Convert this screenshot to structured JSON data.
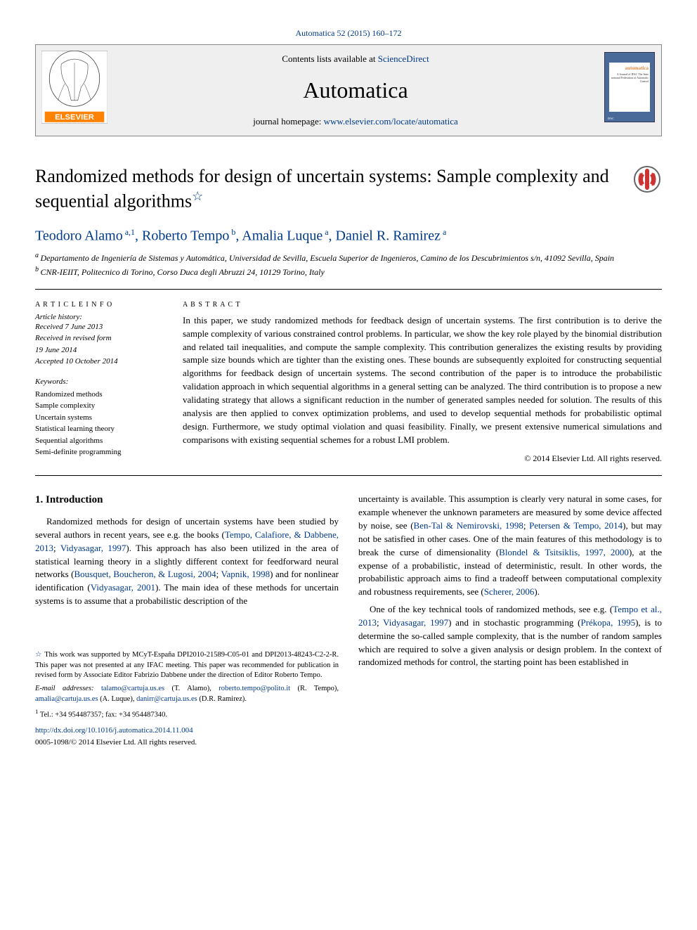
{
  "header": {
    "citation": "Automatica 52 (2015) 160–172",
    "contents_prefix": "Contents lists available at ",
    "contents_link": "ScienceDirect",
    "journal": "Automatica",
    "homepage_prefix": "journal homepage: ",
    "homepage_link": "www.elsevier.com/locate/automatica",
    "cover_title": "automatica",
    "cover_sub": "A Journal of IFAC The Inter national Federation of Automatic Control",
    "cover_bottom": "IFAC"
  },
  "title": "Randomized methods for design of uncertain systems: Sample complexity and sequential algorithms",
  "authors_html": [
    {
      "name": "Teodoro Alamo",
      "sup": "a,1"
    },
    {
      "name": "Roberto Tempo",
      "sup": "b"
    },
    {
      "name": "Amalia Luque",
      "sup": "a"
    },
    {
      "name": "Daniel R. Ramirez",
      "sup": "a"
    }
  ],
  "affiliations": [
    {
      "sup": "a",
      "text": "Departamento de Ingeniería de Sistemas y Automática, Universidad de Sevilla, Escuela Superior de Ingenieros, Camino de los Descubrimientos s/n, 41092 Sevilla, Spain"
    },
    {
      "sup": "b",
      "text": "CNR-IEIIT, Politecnico di Torino, Corso Duca degli Abruzzi 24, 10129 Torino, Italy"
    }
  ],
  "info": {
    "title": "A R T I C L E   I N F O",
    "history_title": "Article history:",
    "dates": [
      "Received 7 June 2013",
      "Received in revised form",
      "19 June 2014",
      "Accepted 10 October 2014"
    ],
    "kw_title": "Keywords:",
    "keywords": [
      "Randomized methods",
      "Sample complexity",
      "Uncertain systems",
      "Statistical learning theory",
      "Sequential algorithms",
      "Semi-definite programming"
    ]
  },
  "abstract": {
    "title": "A B S T R A C T",
    "text": "In this paper, we study randomized methods for feedback design of uncertain systems. The first contribution is to derive the sample complexity of various constrained control problems. In particular, we show the key role played by the binomial distribution and related tail inequalities, and compute the sample complexity. This contribution generalizes the existing results by providing sample size bounds which are tighter than the existing ones. These bounds are subsequently exploited for constructing sequential algorithms for feedback design of uncertain systems. The second contribution of the paper is to introduce the probabilistic validation approach in which sequential algorithms in a general setting can be analyzed. The third contribution is to propose a new validating strategy that allows a significant reduction in the number of generated samples needed for solution. The results of this analysis are then applied to convex optimization problems, and used to develop sequential methods for probabilistic optimal design. Furthermore, we study optimal violation and quasi feasibility. Finally, we present extensive numerical simulations and comparisons with existing sequential schemes for a robust LMI problem.",
    "copyright": "© 2014 Elsevier Ltd. All rights reserved."
  },
  "body": {
    "sec_title": "1. Introduction",
    "left": [
      {
        "t": "Randomized methods for design of uncertain systems have been studied by several authors in recent years, see e.g. the books ("
      },
      {
        "l": "Tempo, Calafiore, & Dabbene, 2013"
      },
      {
        "t": "; "
      },
      {
        "l": "Vidyasagar, 1997"
      },
      {
        "t": "). This approach has also been utilized in the area of statistical learning theory in a slightly different context for feedforward neural networks ("
      },
      {
        "l": "Bousquet, Boucheron, & Lugosi, 2004"
      },
      {
        "t": "; "
      },
      {
        "l": "Vapnik, 1998"
      },
      {
        "t": ") and for nonlinear identification ("
      },
      {
        "l": "Vidyasagar, 2001"
      },
      {
        "t": "). The main idea of these methods for uncertain systems is to assume that a probabilistic description of the"
      }
    ],
    "right": [
      {
        "t": "uncertainty is available. This assumption is clearly very natural in some cases, for example whenever the unknown parameters are measured by some device affected by noise, see ("
      },
      {
        "l": "Ben-Tal & Nemirovski, 1998"
      },
      {
        "t": "; "
      },
      {
        "l": "Petersen & Tempo, 2014"
      },
      {
        "t": "), but may not be satisfied in other cases. One of the main features of this methodology is to break the curse of dimensionality ("
      },
      {
        "l": "Blondel & Tsitsiklis, 1997, 2000"
      },
      {
        "t": "), at the expense of a probabilistic, instead of deterministic, result. In other words, the probabilistic approach aims to find a tradeoff between computational complexity and robustness requirements, see ("
      },
      {
        "l": "Scherer, 2006"
      },
      {
        "t": ")."
      },
      {
        "br": true
      },
      {
        "t": "One of the key technical tools of randomized methods, see e.g. ("
      },
      {
        "l": "Tempo et al., 2013"
      },
      {
        "t": "; "
      },
      {
        "l": "Vidyasagar, 1997"
      },
      {
        "t": ") and in stochastic programming ("
      },
      {
        "l": "Prékopa, 1995"
      },
      {
        "t": "), is to determine the so-called sample complexity, that is the number of random samples which are required to solve a given analysis or design problem. In the context of randomized methods for control, the starting point has been established in"
      }
    ]
  },
  "footnotes": {
    "fn1": {
      "label": "☆",
      "text1": "This work was supported by MCyT-España DPI2010-21589-C05-01 and DPI2013-48243-C2-2-R. This paper was not presented at any IFAC meeting. This paper was recommended for publication in revised form by Associate Editor Fabrizio Dabbene under the direction of Editor Roberto Tempo.",
      "emails_label": "E-mail addresses:",
      "emails": [
        {
          "e": "talamo@cartuja.us.es",
          "who": "(T. Alamo)"
        },
        {
          "e": "roberto.tempo@polito.it",
          "who": "(R. Tempo)"
        },
        {
          "e": "amalia@cartuja.us.es",
          "who": "(A. Luque)"
        },
        {
          "e": "danirr@cartuja.us.es",
          "who": "(D.R. Ramirez)"
        }
      ]
    },
    "fn2": {
      "label": "1",
      "text": "Tel.: +34 954487357; fax: +34 954487340."
    }
  },
  "doi": "http://dx.doi.org/10.1016/j.automatica.2014.11.004",
  "bottom_copy": "0005-1098/© 2014 Elsevier Ltd. All rights reserved."
}
